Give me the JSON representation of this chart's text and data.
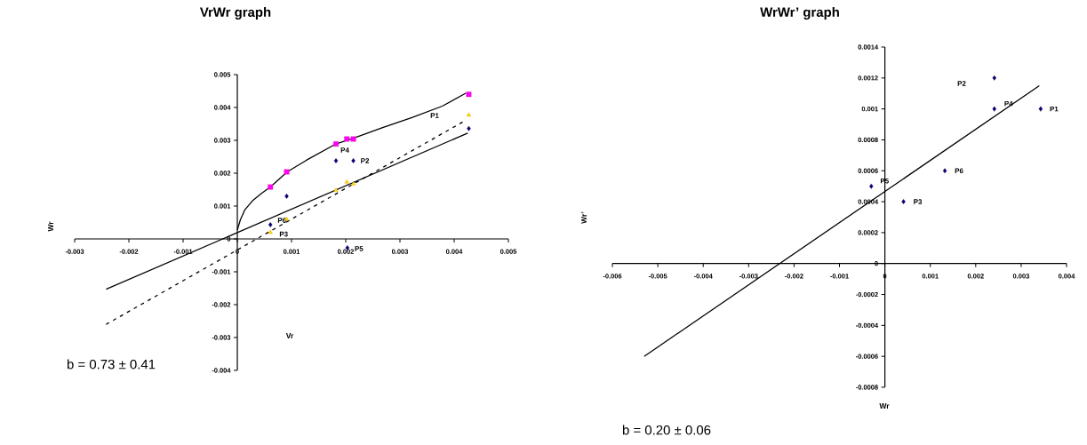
{
  "chart_data": [
    {
      "type": "scatter",
      "title": "VrWr graph",
      "xlabel": "Vr",
      "ylabel": "Wr",
      "xlim": [
        -0.003,
        0.005
      ],
      "ylim": [
        -0.004,
        0.005
      ],
      "xticks": [
        -0.003,
        -0.002,
        -0.001,
        0,
        0.001,
        0.002,
        0.003,
        0.004,
        0.005
      ],
      "yticks": [
        -0.004,
        -0.003,
        -0.002,
        -0.001,
        0,
        0.001,
        0.002,
        0.003,
        0.004,
        0.005
      ],
      "series": [
        {
          "type": "line",
          "color": "#000000",
          "line_style": "solid",
          "marker": "none",
          "x": [
            0,
            5.6e-05,
            0.00014,
            0.00028,
            0.00044,
            0.00061,
            0.00092,
            0.00128,
            0.00182,
            0.00222,
            0.00267,
            0.00322,
            0.00378,
            0.00422
          ],
          "values": [
            0.00027,
            0.00058,
            0.00089,
            0.00116,
            0.00138,
            0.00158,
            0.00204,
            0.0024,
            0.00289,
            0.00311,
            0.00338,
            0.00369,
            0.00404,
            0.00444
          ]
        },
        {
          "type": "line",
          "color": "#000000",
          "line_style": "solid",
          "marker": "none",
          "x": [
            -0.00242,
            0.00425
          ],
          "values": [
            -0.00153,
            0.00322
          ]
        },
        {
          "type": "line",
          "color": "#000000",
          "line_style": "dashed",
          "marker": "none",
          "x": [
            -0.00242,
            0.00417
          ],
          "values": [
            -0.0026,
            0.00357
          ]
        },
        {
          "color": "#ff00ff",
          "marker": "square",
          "x": [
            0.00061,
            0.00091,
            0.00182,
            0.00202,
            0.00214,
            0.00427
          ],
          "values": [
            0.00158,
            0.00204,
            0.00289,
            0.00304,
            0.00304,
            0.0044
          ]
        },
        {
          "color": "#ffd700",
          "marker": "triangle",
          "x": [
            0.00061,
            0.00091,
            0.00182,
            0.00202,
            0.00214,
            0.00427
          ],
          "values": [
            0.0002,
            0.0006,
            0.00148,
            0.00173,
            0.00167,
            0.00377
          ]
        },
        {
          "color": "#000080",
          "marker": "diamond",
          "x": [
            0.00061,
            0.00091,
            0.00182,
            0.00214,
            0.00203,
            0.00427
          ],
          "values": [
            0.00043,
            0.0013,
            0.00238,
            0.00238,
            -0.00027,
            0.00336
          ]
        }
      ],
      "annotations": [
        "P1",
        {
          "text": "P4",
          "x": 0.00182,
          "y": 0.00238
        },
        {
          "text": "P2",
          "x": 0.00214,
          "y": 0.00238
        },
        {
          "text": "P6",
          "x": 0.00061,
          "y": 0.00043
        },
        {
          "text": "P3",
          "x": 0.00061,
          "y": 0.0002
        },
        {
          "text": "P5",
          "x": 0.00203,
          "y": -0.00027
        },
        "b = 0.73 ± 0.41"
      ]
    },
    {
      "type": "scatter",
      "title": "WrWr’ graph",
      "xlabel": "Wr",
      "ylabel": "Wr’",
      "xlim": [
        -0.006,
        0.004
      ],
      "ylim": [
        -0.0008,
        0.0014
      ],
      "xticks": [
        -0.006,
        -0.005,
        -0.004,
        -0.003,
        -0.002,
        -0.001,
        0,
        0.001,
        0.002,
        0.003,
        0.004
      ],
      "yticks": [
        -0.0008,
        -0.0006,
        -0.0004,
        -0.0002,
        0,
        0.0002,
        0.0004,
        0.0006,
        0.0008,
        0.001,
        0.0012,
        0.0014
      ],
      "series": [
        {
          "type": "line",
          "color": "#000000",
          "line_style": "solid",
          "marker": "none",
          "x": [
            -0.0053,
            0.0034
          ],
          "values": [
            -0.0006,
            0.00115
          ]
        },
        {
          "color": "#000080",
          "marker": "diamond",
          "x": [
            0.00343,
            0.00241,
            0.00041,
            0.00241,
            -0.0003,
            0.00132
          ],
          "values": [
            0.001,
            0.0012,
            0.0004,
            0.001,
            0.0005,
            0.0006
          ]
        }
      ],
      "annotations": [
        "P2",
        {
          "text": "P4",
          "x": 0.00241,
          "y": 0.001
        },
        {
          "text": "P1",
          "x": 0.00343,
          "y": 0.001
        },
        {
          "text": "P6",
          "x": 0.00132,
          "y": 0.0006
        },
        {
          "text": "P5",
          "x": -0.0003,
          "y": 0.0005
        },
        {
          "text": "P3",
          "x": 0.00041,
          "y": 0.0004
        },
        "b = 0.20 ± 0.06"
      ]
    }
  ]
}
